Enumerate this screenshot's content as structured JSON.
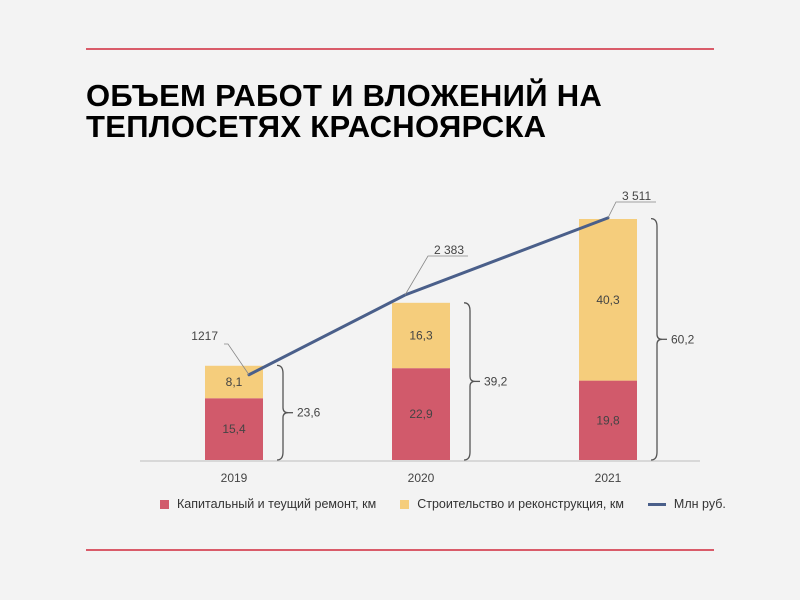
{
  "title_line1": "ОБЪЕМ РАБОТ И ВЛОЖЕНИЙ НА",
  "title_line2": "ТЕПЛОСЕТЯХ КРАСНОЯРСКА",
  "colors": {
    "rule": "#d95b69",
    "repair": "#d15a6b",
    "construction": "#f5cd7c",
    "line": "#4a5f8a",
    "bracket": "#555555",
    "axis": "#cfcfcf",
    "text": "#444444"
  },
  "chart_data": {
    "type": "bar",
    "stacked": true,
    "categories": [
      "2019",
      "2020",
      "2021"
    ],
    "series": [
      {
        "name": "Капитальный и теущий ремонт, км",
        "values": [
          15.4,
          22.9,
          19.8
        ],
        "labels": [
          "15,4",
          "22,9",
          "19,8"
        ]
      },
      {
        "name": "Строительство и реконструкция, км",
        "values": [
          8.1,
          16.3,
          40.3
        ],
        "labels": [
          "8,1",
          "16,3",
          "40,3"
        ]
      }
    ],
    "totals": [
      23.6,
      39.2,
      60.2
    ],
    "total_labels": [
      "23,6",
      "39,2",
      "60,2"
    ],
    "line_series": {
      "name": "Млн руб.",
      "values": [
        1217,
        2383,
        3511
      ],
      "labels": [
        "1217",
        "2 383",
        "3 511"
      ]
    },
    "legend_position": "bottom"
  }
}
